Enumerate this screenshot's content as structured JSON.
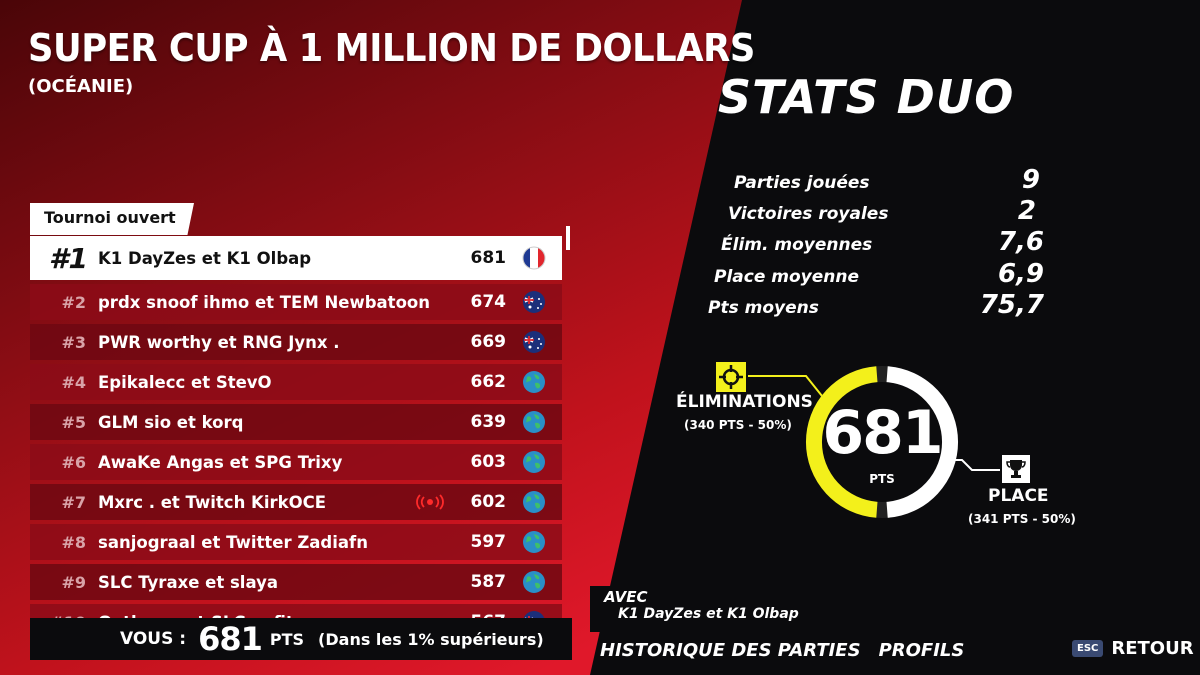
{
  "header": {
    "title": "SUPER CUP À 1 MILLION DE DOLLARS",
    "subtitle": "(OCÉANIE)",
    "tag": "Tournoi ouvert"
  },
  "leaderboard": [
    {
      "rank": "#1",
      "name": "K1 DayZes et K1 Olbap",
      "points": "681",
      "flag": "france-flag"
    },
    {
      "rank": "#2",
      "name": "prdx snoof ihmo et TEM Newbatoon",
      "points": "674",
      "flag": "australia-flag"
    },
    {
      "rank": "#3",
      "name": "PWR worthy et RNG Jynx .",
      "points": "669",
      "flag": "australia-flag"
    },
    {
      "rank": "#4",
      "name": "Epikalecc et StevO",
      "points": "662",
      "flag": "globe-icon"
    },
    {
      "rank": "#5",
      "name": "GLM sio et korq",
      "points": "639",
      "flag": "globe-icon"
    },
    {
      "rank": "#6",
      "name": "AwaKe Angas et SPG Trixy",
      "points": "603",
      "flag": "globe-icon"
    },
    {
      "rank": "#7",
      "name": "Mxrc . et Twitch KirkOCE",
      "points": "602",
      "flag": "globe-icon",
      "live": "live-stream-icon"
    },
    {
      "rank": "#8",
      "name": "sanjograal et Twitter Zadiafn",
      "points": "597",
      "flag": "globe-icon"
    },
    {
      "rank": "#9",
      "name": "SLC Tyraxe et slaya",
      "points": "587",
      "flag": "globe-icon"
    },
    {
      "rank": "#10",
      "name": "Qatlex.v. et SLC eefit",
      "points": "567",
      "flag": "australia-flag"
    }
  ],
  "you": {
    "label": "VOUS :",
    "points": "681",
    "unit": "PTS",
    "note": "(Dans les 1% supérieurs)"
  },
  "stats": {
    "title": "STATS DUO",
    "items": [
      {
        "label": "Parties jouées",
        "value": "9"
      },
      {
        "label": "Victoires royales",
        "value": "2"
      },
      {
        "label": "Élim. moyennes",
        "value": "7,6"
      },
      {
        "label": "Place moyenne",
        "value": "6,9"
      },
      {
        "label": "Pts moyens",
        "value": "75,7"
      }
    ]
  },
  "donut": {
    "score": "681",
    "unit": "PTS",
    "eliminations_label": "ÉLIMINATIONS",
    "eliminations_sub": "(340 PTS - 50%)",
    "eliminations_fraction": 0.5,
    "place_label": "PLACE",
    "place_sub": "(341 PTS - 50%)",
    "place_fraction": 0.5,
    "eliminations_color": "#f3f01b",
    "place_color": "#ffffff"
  },
  "partner": {
    "label": "AVEC",
    "names": "K1 DayZes et K1 Olbap"
  },
  "nav": {
    "history": "HISTORIQUE DES PARTIES",
    "profiles": "PROFILS",
    "esc_key": "ESC",
    "back": "RETOUR"
  }
}
